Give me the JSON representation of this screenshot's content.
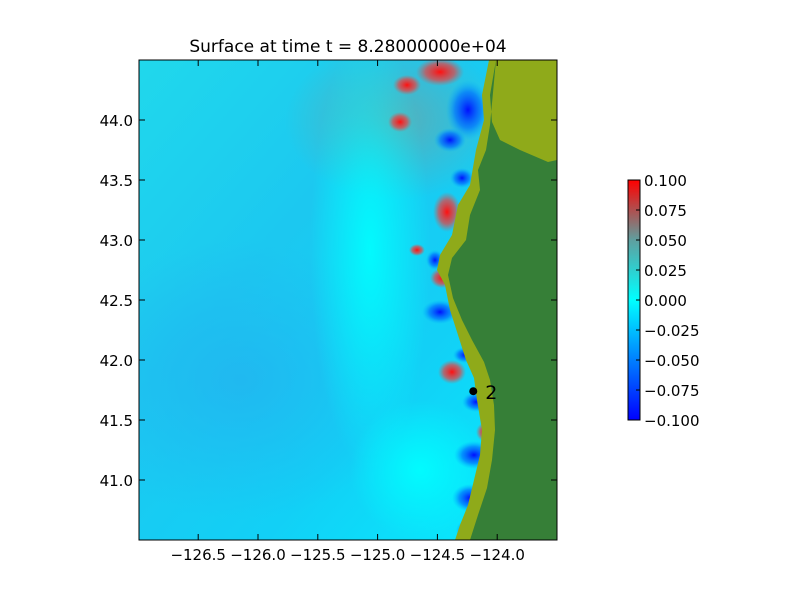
{
  "chart_data": {
    "type": "heatmap",
    "title": "Surface at time t = 8.28000000e+04",
    "xlabel": "",
    "ylabel": "",
    "xlim": [
      -126.995,
      -123.5
    ],
    "ylim": [
      40.5,
      44.5
    ],
    "x_ticks": [
      {
        "value": -126.5,
        "label": "−126.5"
      },
      {
        "value": -126.0,
        "label": "−126.0"
      },
      {
        "value": -125.5,
        "label": "−125.5"
      },
      {
        "value": -125.0,
        "label": "−125.0"
      },
      {
        "value": -124.5,
        "label": "−124.5"
      },
      {
        "value": -124.0,
        "label": "−124.0"
      }
    ],
    "y_ticks": [
      {
        "value": 41.0,
        "label": "41.0"
      },
      {
        "value": 41.5,
        "label": "41.5"
      },
      {
        "value": 42.0,
        "label": "42.0"
      },
      {
        "value": 42.5,
        "label": "42.5"
      },
      {
        "value": 43.0,
        "label": "43.0"
      },
      {
        "value": 43.5,
        "label": "43.5"
      },
      {
        "value": 44.0,
        "label": "44.0"
      }
    ],
    "colorbar": {
      "vmin": -0.1,
      "vmax": 0.1,
      "colors": [
        "#0000ff",
        "#00ffff",
        "#ff0000"
      ],
      "ticks": [
        {
          "value": 0.1,
          "label": "0.100"
        },
        {
          "value": 0.075,
          "label": "0.075"
        },
        {
          "value": 0.05,
          "label": "0.050"
        },
        {
          "value": 0.025,
          "label": "0.025"
        },
        {
          "value": 0.0,
          "label": "0.000"
        },
        {
          "value": -0.025,
          "label": "−0.025"
        },
        {
          "value": -0.05,
          "label": "−0.050"
        },
        {
          "value": -0.075,
          "label": "−0.075"
        },
        {
          "value": -0.1,
          "label": "−0.100"
        }
      ]
    },
    "land_color": "#367f37",
    "coast_color": "#8faa1a",
    "gauges": [
      {
        "label": "2",
        "x": -124.2,
        "y": 41.74
      }
    ]
  }
}
